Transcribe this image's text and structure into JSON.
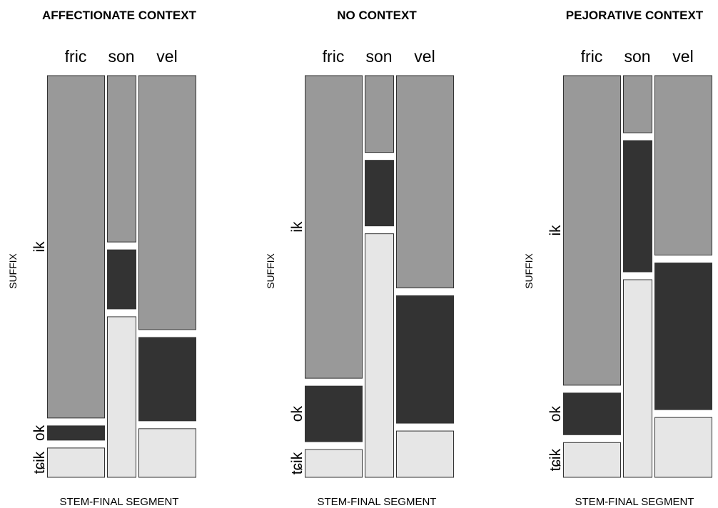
{
  "colors": {
    "ik": "#999999",
    "ok": "#333333",
    "tcik": "#e6e6e6",
    "stroke": "#333333",
    "background": "#ffffff"
  },
  "chart_data": [
    {
      "type": "mosaic",
      "title": "AFFECTIONATE CONTEXT",
      "xlabel": "STEM-FINAL SEGMENT",
      "ylabel": "SUFFIX",
      "categories": [
        "fric",
        "son",
        "vel"
      ],
      "category_shares": [
        0.42,
        0.21,
        0.42
      ],
      "suffix_labels": [
        "ik",
        "ok",
        "tɕik"
      ],
      "series": [
        {
          "name": "ik",
          "values": [
            0.887,
            0.431,
            0.658
          ]
        },
        {
          "name": "ok",
          "values": [
            0.037,
            0.153,
            0.216
          ]
        },
        {
          "name": "tɕik",
          "values": [
            0.076,
            0.416,
            0.126
          ]
        }
      ]
    },
    {
      "type": "mosaic",
      "title": "NO CONTEXT",
      "xlabel": "STEM-FINAL SEGMENT",
      "ylabel": "SUFFIX",
      "categories": [
        "fric",
        "son",
        "vel"
      ],
      "category_shares": [
        0.42,
        0.21,
        0.42
      ],
      "suffix_labels": [
        "ik",
        "ok",
        "tɕik"
      ],
      "series": [
        {
          "name": "ik",
          "values": [
            0.784,
            0.199,
            0.55
          ]
        },
        {
          "name": "ok",
          "values": [
            0.144,
            0.17,
            0.33
          ]
        },
        {
          "name": "tɕik",
          "values": [
            0.072,
            0.631,
            0.12
          ]
        }
      ]
    },
    {
      "type": "mosaic",
      "title": "PEJORATIVE CONTEXT",
      "xlabel": "STEM-FINAL SEGMENT",
      "ylabel": "SUFFIX",
      "categories": [
        "fric",
        "son",
        "vel"
      ],
      "category_shares": [
        0.42,
        0.21,
        0.42
      ],
      "suffix_labels": [
        "ik",
        "ok",
        "tɕik"
      ],
      "series": [
        {
          "name": "ik",
          "values": [
            0.802,
            0.148,
            0.465
          ]
        },
        {
          "name": "ok",
          "values": [
            0.108,
            0.34,
            0.38
          ]
        },
        {
          "name": "tɕik",
          "values": [
            0.09,
            0.512,
            0.155
          ]
        }
      ]
    }
  ]
}
